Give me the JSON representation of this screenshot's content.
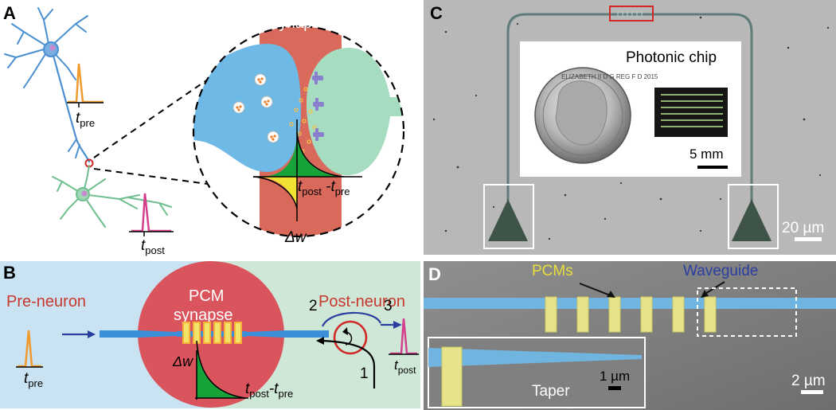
{
  "panelA": {
    "letter": "A",
    "synapse_label": "Synapse",
    "t_pre": {
      "main": "t",
      "sub": "pre"
    },
    "t_post": {
      "main": "t",
      "sub": "post"
    },
    "delta_w": "Δw",
    "stdp_axis": {
      "t1": "t",
      "s1": "post",
      "mid": " -t",
      "s2": "pre"
    }
  },
  "panelB": {
    "letter": "B",
    "pre_neuron": "Pre-neuron",
    "post_neuron": "Post-neuron",
    "pcm_line1": "PCM",
    "pcm_line2": "synapse",
    "delta_w": "Δw",
    "stdp_axis": {
      "t1": "t",
      "s1": "post",
      "mid": "-t",
      "s2": "pre"
    },
    "t_pre": {
      "main": "t",
      "sub": "pre"
    },
    "t_post": {
      "main": "t",
      "sub": "post"
    },
    "ports": [
      "1",
      "2",
      "3"
    ]
  },
  "panelC": {
    "letter": "C",
    "inset_label": "Photonic chip",
    "inset_scale": "5 mm",
    "scale": "20 µm",
    "coin_text": "ELIZABETH II D G REG F D 2015"
  },
  "panelD": {
    "letter": "D",
    "pcms": "PCMs",
    "waveguide": "Waveguide",
    "taper": "Taper",
    "inset_scale": "1 µm",
    "scale": "2 µm"
  },
  "colors": {
    "red_label": "#c8382f",
    "pcm_circle": "#d9545c",
    "synapse_band": "#d9695b",
    "pre_cell": "#6fb9e6",
    "post_cell": "#9fd8b6",
    "waveguide": "#3a8fd8",
    "pcm_yellow": "#f2e36b",
    "panelB_left_bg": "#c9e3f2",
    "panelB_right_bg": "#cfe7d6",
    "waveguide_label": "#2a3ea0",
    "pcm_label": "#e8de3c"
  }
}
